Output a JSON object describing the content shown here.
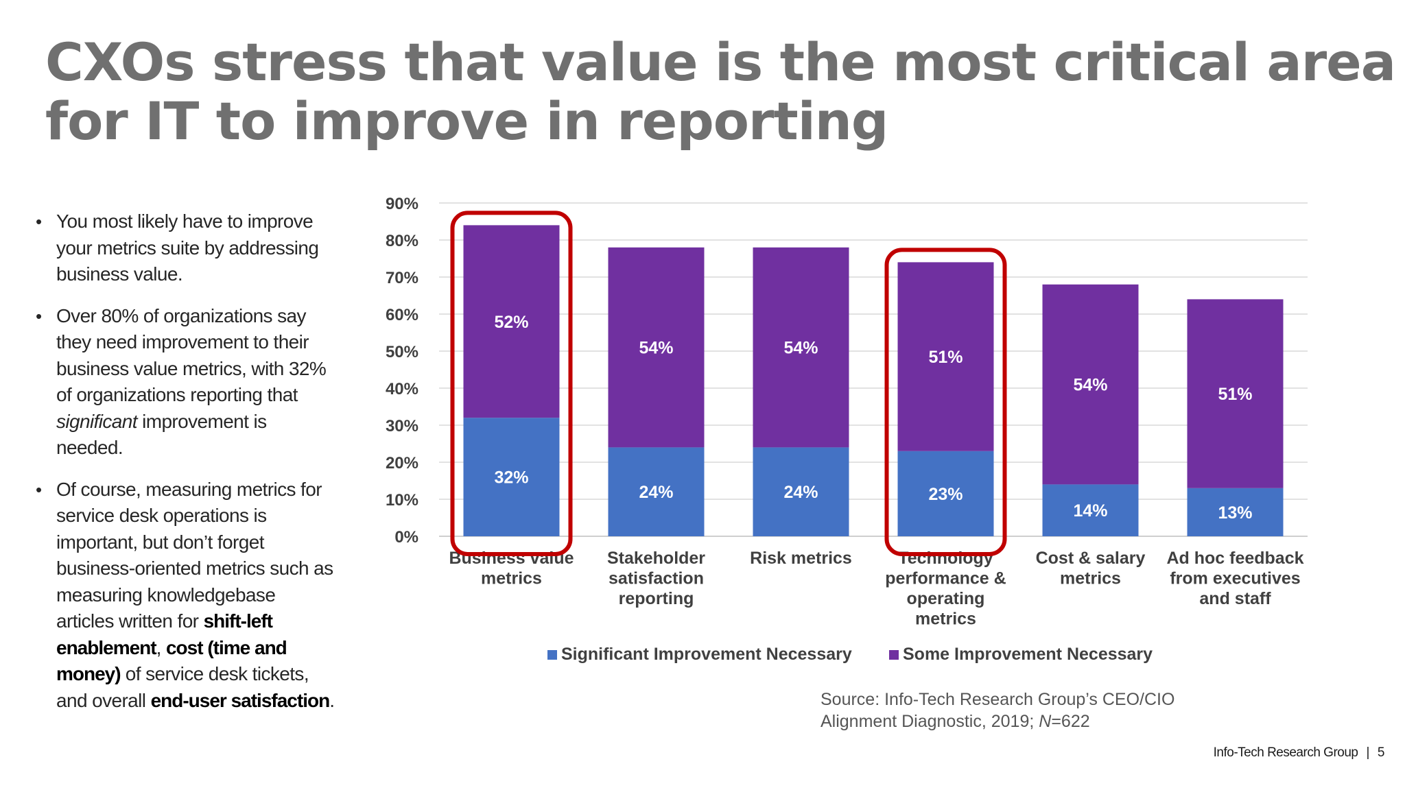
{
  "title": {
    "line1": "CXOs stress that value is the most critical area",
    "line2": "for IT to improve in reporting"
  },
  "bullets": {
    "b1": "You most likely have to improve your metrics suite by addressing business value.",
    "b2_pre": "Over 80% of organizations say they need improvement to their business value metrics, with 32% of organizations reporting that ",
    "b2_em": "significant",
    "b2_post": " improvement is needed.",
    "b3_pre": "Of course, measuring metrics for service desk operations is important, but don’t forget business-oriented metrics such as measuring knowledgebase articles written for ",
    "b3_s1": "shift-left enablement",
    "b3_mid1": ", ",
    "b3_s2": "cost (time and money)",
    "b3_mid2": " of service desk tickets, and overall ",
    "b3_s3": "end-user satisfaction",
    "b3_end": "."
  },
  "chart_data": {
    "type": "bar",
    "stacked": true,
    "categories": [
      [
        "Business value",
        "metrics"
      ],
      [
        "Stakeholder",
        "satisfaction",
        "reporting"
      ],
      [
        "Risk metrics"
      ],
      [
        "Technology",
        "performance &",
        "operating",
        "metrics"
      ],
      [
        "Cost & salary",
        "metrics"
      ],
      [
        "Ad hoc feedback",
        "from executives",
        "and staff"
      ]
    ],
    "series": [
      {
        "name": "Significant Improvement Necessary",
        "color": "#4472c4",
        "values": [
          32,
          24,
          24,
          23,
          14,
          13
        ],
        "labels": [
          "32%",
          "24%",
          "24%",
          "23%",
          "14%",
          "13%"
        ]
      },
      {
        "name": "Some Improvement Necessary",
        "color": "#7030a0",
        "values": [
          52,
          54,
          54,
          51,
          54,
          51
        ],
        "labels": [
          "52%",
          "54%",
          "54%",
          "51%",
          "54%",
          "51%"
        ]
      }
    ],
    "y_ticks": [
      "0%",
      "10%",
      "20%",
      "30%",
      "40%",
      "50%",
      "60%",
      "70%",
      "80%",
      "90%"
    ],
    "ylim": [
      0,
      90
    ],
    "gridlines": true,
    "highlighted_categories": [
      0,
      3
    ],
    "highlight_color": "#c00000",
    "legend_position": "bottom"
  },
  "source": {
    "line1": "Source: Info-Tech Research Group’s CEO/CIO",
    "line2_pre": "Alignment Diagnostic, 2019; ",
    "line2_em": "N",
    "line2_post": "=622"
  },
  "footer": {
    "brand": "Info-Tech Research Group",
    "separator": "|",
    "page": "5"
  }
}
